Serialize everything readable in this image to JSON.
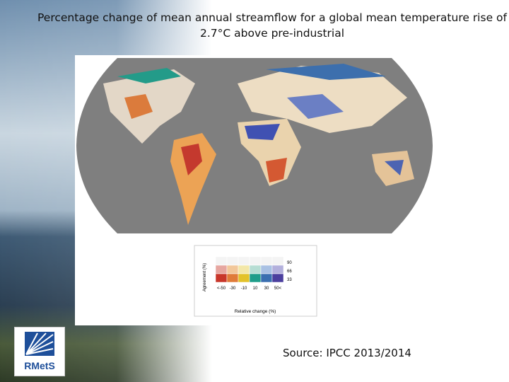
{
  "slide": {
    "title": [
      "Percentage change of mean annual streamflow for a global mean temperature rise of",
      "2.7°C above pre-industrial"
    ],
    "source": "Source: IPCC 2013/2014",
    "logo": "RMetS"
  },
  "legend": {
    "y_label": "Agreement (%)",
    "y_ticks": [
      "90",
      "66",
      "33"
    ],
    "x_label": "Relative change (%)",
    "x_ticks": [
      "<-50",
      "-30",
      "-10",
      "10",
      "30",
      "50<"
    ]
  }
}
